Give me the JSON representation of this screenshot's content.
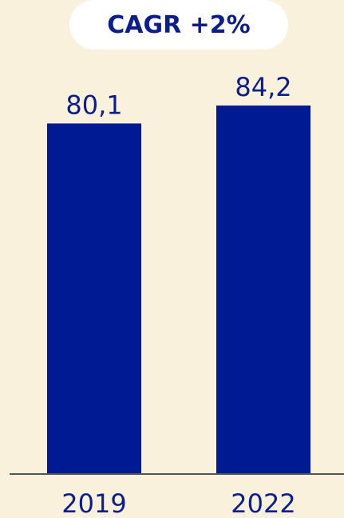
{
  "badge": {
    "text": "CAGR +2%"
  },
  "colors": {
    "background": "#FAF1DC",
    "bar": "#001A94",
    "text": "#0B1E8C",
    "axis": "#555555",
    "badge_background": "#FFFFFF"
  },
  "chart_data": {
    "type": "bar",
    "title": "",
    "xlabel": "",
    "ylabel": "",
    "categories": [
      "2019",
      "2022"
    ],
    "values": [
      80.1,
      84.2
    ],
    "value_labels": [
      "80,1",
      "84,2"
    ],
    "ylim": [
      0,
      84.2
    ],
    "grid": false,
    "legend": "none"
  }
}
